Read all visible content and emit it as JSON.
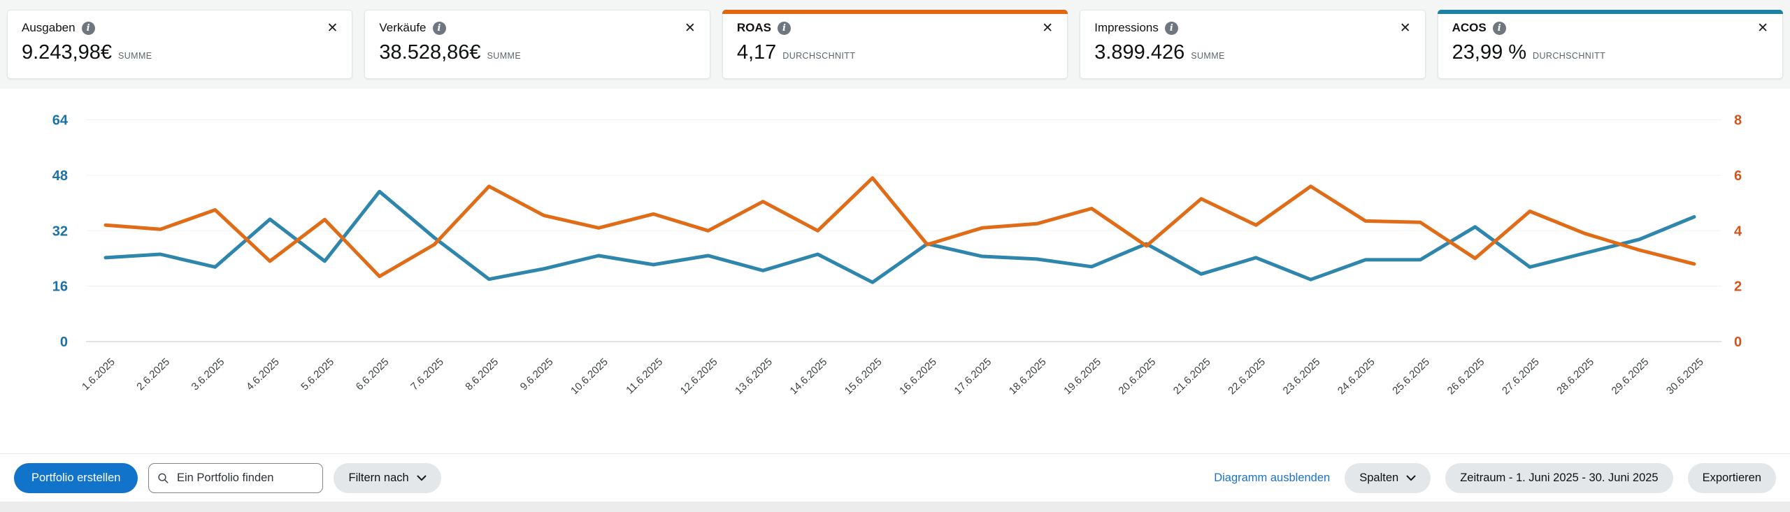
{
  "cards": [
    {
      "label": "Ausgaben",
      "value": "9.243,98€",
      "suffix": "SUMME",
      "selected": false,
      "accent": null
    },
    {
      "label": "Verkäufe",
      "value": "38.528,86€",
      "suffix": "SUMME",
      "selected": false,
      "accent": null
    },
    {
      "label": "ROAS",
      "value": "4,17",
      "suffix": "DURCHSCHNITT",
      "selected": true,
      "accent": "#e0670f"
    },
    {
      "label": "Impressions",
      "value": "3.899.426",
      "suffix": "SUMME",
      "selected": false,
      "accent": null
    },
    {
      "label": "ACOS",
      "value": "23,99 %",
      "suffix": "DURCHSCHNITT",
      "selected": true,
      "accent": "#1e81a3"
    }
  ],
  "chart_data": {
    "type": "line",
    "x_labels": [
      "1.6.2025",
      "2.6.2025",
      "3.6.2025",
      "4.6.2025",
      "5.6.2025",
      "6.6.2025",
      "7.6.2025",
      "8.6.2025",
      "9.6.2025",
      "10.6.2025",
      "11.6.2025",
      "12.6.2025",
      "13.6.2025",
      "14.6.2025",
      "15.6.2025",
      "16.6.2025",
      "17.6.2025",
      "18.6.2025",
      "19.6.2025",
      "20.6.2025",
      "21.6.2025",
      "22.6.2025",
      "23.6.2025",
      "24.6.2025",
      "25.6.2025",
      "26.6.2025",
      "27.6.2025",
      "28.6.2025",
      "29.6.2025",
      "30.6.2025"
    ],
    "series": [
      {
        "name": "ACOS",
        "axis": "left",
        "color": "#2e86ad",
        "values": [
          24.2,
          25.2,
          21.5,
          35.3,
          23.2,
          43.3,
          30.0,
          18.0,
          21.0,
          24.8,
          22.2,
          24.8,
          20.5,
          25.2,
          17.1,
          28.2,
          24.6,
          23.8,
          21.6,
          28.2,
          19.5,
          24.2,
          17.9,
          23.6,
          23.6,
          33.1,
          21.5,
          25.5,
          29.5,
          36.0
        ]
      },
      {
        "name": "ROAS",
        "axis": "right",
        "color": "#e06c18",
        "values": [
          4.2,
          4.05,
          4.75,
          2.9,
          4.4,
          2.35,
          3.5,
          5.6,
          4.55,
          4.1,
          4.6,
          4.0,
          5.05,
          4.0,
          5.9,
          3.5,
          4.1,
          4.25,
          4.8,
          3.45,
          5.15,
          4.2,
          5.6,
          4.35,
          4.3,
          3.0,
          4.7,
          3.9,
          3.3,
          2.8
        ]
      }
    ],
    "left_axis": {
      "ticks": [
        0,
        16,
        32,
        48,
        64
      ],
      "range": [
        0,
        64
      ],
      "label_color": "#1c71a9"
    },
    "right_axis": {
      "ticks": [
        0,
        2,
        4,
        6,
        8
      ],
      "range": [
        0,
        8
      ],
      "label_color": "#d4551b"
    },
    "grid": true,
    "legend": "none"
  },
  "toolbar": {
    "create_portfolio": "Portfolio erstellen",
    "search_placeholder": "Ein Portfolio finden",
    "filter_by": "Filtern nach",
    "hide_chart": "Diagramm ausblenden",
    "columns": "Spalten",
    "date_range": "Zeitraum - 1. Juni 2025 - 30. Juni 2025",
    "export": "Exportieren"
  },
  "colors": {
    "primary_button": "#1173c9",
    "link": "#1a73c9",
    "roas_accent": "#e0670f",
    "acos_accent": "#1e81a3",
    "acos_line": "#2e86ad",
    "roas_line": "#e06c18"
  }
}
